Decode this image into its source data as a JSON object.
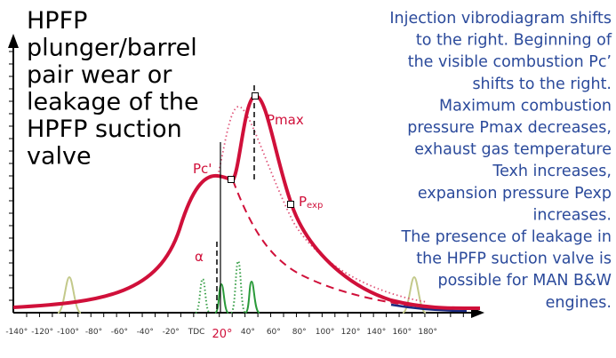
{
  "title_lines": [
    "HPFP",
    "plunger/barrel",
    "pair wear or",
    "leakage of the",
    "HPFP suction",
    "valve"
  ],
  "description_lines": [
    "Injection vibrodiagram shifts",
    "to the right. Beginning of",
    "the visible combustion Pc’",
    "shifts to the right.",
    "Maximum combustion",
    "pressure Pmax decreases,",
    "exhaust gas temperature",
    "Texh increases,",
    "expansion pressure Pexp",
    "increases.",
    "The presence of leakage in",
    "the HPFP suction valve is",
    "possible for MAN B&W",
    "engines."
  ],
  "labels": {
    "pc": "Pc'",
    "pmax": "Pmax",
    "pexp": "P",
    "pexp_sub": "exp",
    "alpha": "α"
  },
  "x_axis": {
    "ticks": [
      "-140°",
      "-120°",
      "-100°",
      "-80°",
      "-60°",
      "-40°",
      "-20°",
      "TDC",
      "20°",
      "40°",
      "60°",
      "80°",
      "100°",
      "120°",
      "140°",
      "160°",
      "180°"
    ]
  }
}
